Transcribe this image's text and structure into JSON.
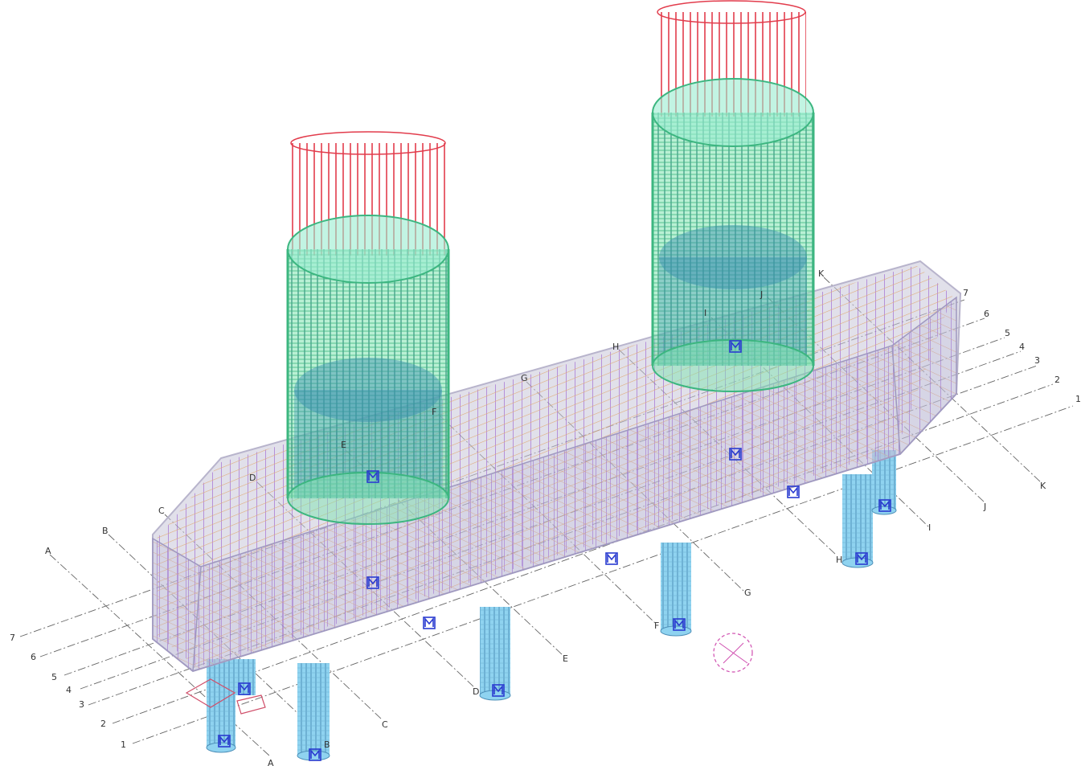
{
  "grid": {
    "letters": [
      "A",
      "B",
      "C",
      "D",
      "E",
      "F",
      "G",
      "H",
      "I",
      "J",
      "K"
    ],
    "numbers": [
      "1",
      "2",
      "3",
      "4",
      "5",
      "6",
      "7"
    ]
  },
  "colors": {
    "background": "#ffffff",
    "concrete_fill": "#c9c6d8",
    "pile_fill": "#8fd3f0",
    "column_fill": "#7fe3b0",
    "dowel_red": "#e23c4c",
    "rebar_purple": "#9a5cd0",
    "rebar_orange": "#e0a060",
    "rebar_blue": "#4d6fd8",
    "pile_marker": "#2a3bd0",
    "marker_pink": "#d04fb0"
  },
  "icons": [
    "pile-marker-icon",
    "view-gizmo-icon",
    "coordinate-axis-icon"
  ]
}
